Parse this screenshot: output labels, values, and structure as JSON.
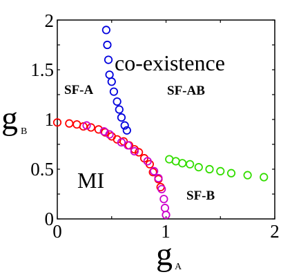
{
  "chart_data": {
    "type": "scatter",
    "xlabel": "g",
    "xlabel_sub": "A",
    "ylabel": "g",
    "ylabel_sub": "B",
    "xlim": [
      0,
      2
    ],
    "ylim": [
      0,
      2
    ],
    "xticks": [
      "0",
      "1",
      "2"
    ],
    "yticks": [
      "0",
      "0.5",
      "1",
      "1.5",
      "2"
    ],
    "grid": false,
    "legend": "none",
    "marker": "open-circle",
    "annotations": {
      "sf_a": "SF-A",
      "sf_ab": "SF-AB",
      "sf_b": "SF-B",
      "mi": "MI",
      "coexistence": "co-existence"
    },
    "series": [
      {
        "color": "#0000dd",
        "points": [
          [
            0.45,
            1.9
          ],
          [
            0.46,
            1.75
          ],
          [
            0.47,
            1.6
          ],
          [
            0.48,
            1.45
          ],
          [
            0.5,
            1.38
          ],
          [
            0.52,
            1.28
          ],
          [
            0.55,
            1.18
          ],
          [
            0.57,
            1.1
          ],
          [
            0.59,
            1.02
          ],
          [
            0.62,
            0.94
          ],
          [
            0.64,
            0.89
          ]
        ]
      },
      {
        "color": "#ff0000",
        "points": [
          [
            0.0,
            0.97
          ],
          [
            0.11,
            0.96
          ],
          [
            0.18,
            0.95
          ],
          [
            0.24,
            0.93
          ],
          [
            0.31,
            0.92
          ],
          [
            0.38,
            0.9
          ],
          [
            0.44,
            0.87
          ],
          [
            0.5,
            0.83
          ],
          [
            0.55,
            0.8
          ],
          [
            0.61,
            0.78
          ],
          [
            0.66,
            0.74
          ],
          [
            0.71,
            0.7
          ],
          [
            0.75,
            0.67
          ],
          [
            0.8,
            0.61
          ],
          [
            0.85,
            0.55
          ],
          [
            0.88,
            0.47
          ],
          [
            0.93,
            0.4
          ],
          [
            0.95,
            0.32
          ]
        ]
      },
      {
        "color": "#cc00cc",
        "points": [
          [
            0.27,
            0.94
          ],
          [
            0.43,
            0.88
          ],
          [
            0.48,
            0.85
          ],
          [
            0.59,
            0.77
          ],
          [
            0.65,
            0.74
          ],
          [
            0.71,
            0.68
          ],
          [
            0.83,
            0.58
          ],
          [
            0.89,
            0.48
          ],
          [
            0.93,
            0.41
          ],
          [
            0.96,
            0.3
          ],
          [
            0.98,
            0.2
          ],
          [
            0.99,
            0.11
          ],
          [
            1.0,
            0.04
          ]
        ]
      },
      {
        "color": "#33dd00",
        "points": [
          [
            1.03,
            0.6
          ],
          [
            1.09,
            0.58
          ],
          [
            1.15,
            0.56
          ],
          [
            1.22,
            0.55
          ],
          [
            1.3,
            0.52
          ],
          [
            1.4,
            0.5
          ],
          [
            1.5,
            0.48
          ],
          [
            1.6,
            0.46
          ],
          [
            1.75,
            0.44
          ],
          [
            1.9,
            0.42
          ]
        ]
      }
    ]
  }
}
